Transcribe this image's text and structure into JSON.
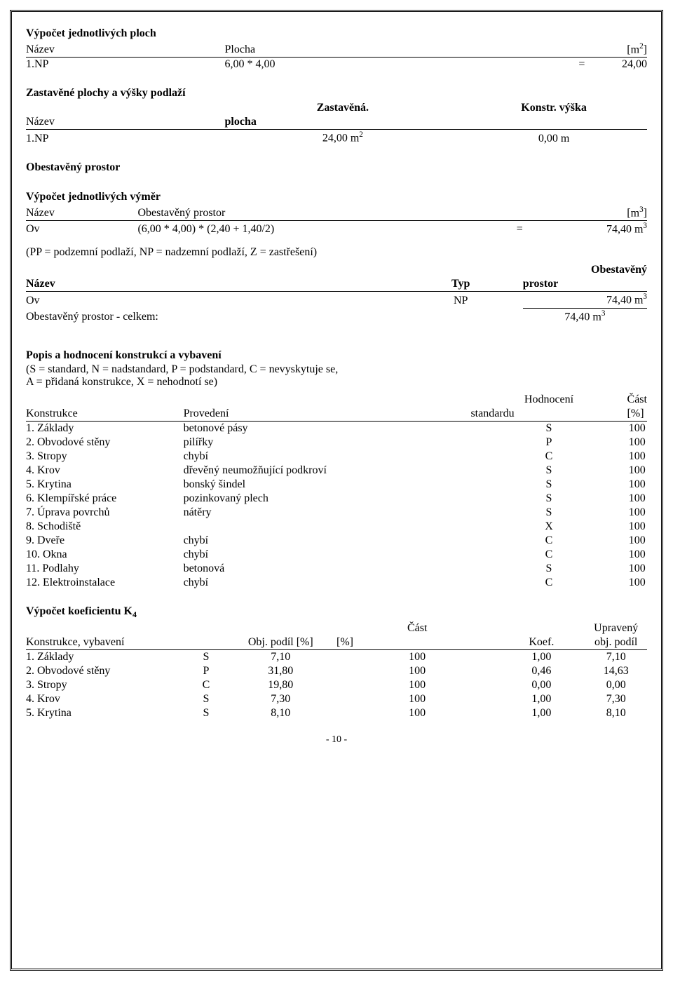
{
  "sections": {
    "ploch_title": "Výpočet jednotlivých ploch",
    "ploch_header": {
      "nazev": "Název",
      "plocha": "Plocha",
      "unit": "[m",
      "unit_sup": "2",
      "unit_close": "]"
    },
    "ploch_row": {
      "nazev": "1.NP",
      "expr": "6,00 * 4,00",
      "eq": "=",
      "val": "24,00"
    },
    "zast_title": "Zastavěné plochy a výšky podlaží",
    "zast_header": {
      "nazev": "Název",
      "col2a": "Zastavěná.",
      "col2b": "plocha",
      "col3": "Konstr. výška"
    },
    "zast_row": {
      "nazev": "1.NP",
      "plocha": "24,00 m",
      "plocha_sup": "2",
      "vyska": "0,00 m"
    },
    "obest_title": "Obestavěný prostor",
    "vymer_title": "Výpočet jednotlivých výměr",
    "vymer_header": {
      "nazev": "Název",
      "col2": "Obestavěný prostor",
      "unit": "[m",
      "unit_sup": "3",
      "unit_close": "]"
    },
    "vymer_row": {
      "nazev": "Ov",
      "expr": "(6,00 * 4,00) * (2,40 + 1,40/2)",
      "eq": "=",
      "val": "74,40 m",
      "val_sup": "3"
    },
    "pp_note": "(PP = podzemní podlaží, NP = nadzemní podlaží, Z = zastřešení)",
    "typ_header": {
      "nazev": "Název",
      "typ": "Typ",
      "col3a": "Obestavěný",
      "col3b": "prostor"
    },
    "typ_row": {
      "nazev": "Ov",
      "typ": "NP",
      "val": "74,40 m",
      "val_sup": "3"
    },
    "typ_total": {
      "label": "Obestavěný prostor - celkem:",
      "val": "74,40 m",
      "val_sup": "3"
    },
    "popis_title": "Popis a hodnocení konstrukcí a vybavení",
    "popis_note1": "(S = standard, N = nadstandard, P = podstandard, C = nevyskytuje se,",
    "popis_note2": "A = přidaná konstrukce, X = nehodnotí se)",
    "kon_header": {
      "konstrukce": "Konstrukce",
      "provedeni": "Provedení",
      "hod1": "Hodnocení",
      "hod2": "standardu",
      "cast1": "Část",
      "cast2": "[%]"
    },
    "kon_rows": [
      {
        "n": "1. Základy",
        "p": "betonové pásy",
        "h": "S",
        "c": "100"
      },
      {
        "n": "2. Obvodové stěny",
        "p": "pilířky",
        "h": "P",
        "c": "100"
      },
      {
        "n": "3. Stropy",
        "p": "chybí",
        "h": "C",
        "c": "100"
      },
      {
        "n": "4. Krov",
        "p": "dřevěný neumožňující podkroví",
        "h": "S",
        "c": "100"
      },
      {
        "n": "5. Krytina",
        "p": "bonský šindel",
        "h": "S",
        "c": "100"
      },
      {
        "n": "6. Klempířské práce",
        "p": "pozinkovaný plech",
        "h": "S",
        "c": "100"
      },
      {
        "n": "7. Úprava povrchů",
        "p": "nátěry",
        "h": "S",
        "c": "100"
      },
      {
        "n": "8. Schodiště",
        "p": "",
        "h": "X",
        "c": "100"
      },
      {
        "n": "9. Dveře",
        "p": "chybí",
        "h": "C",
        "c": "100"
      },
      {
        "n": "10. Okna",
        "p": "chybí",
        "h": "C",
        "c": "100"
      },
      {
        "n": "11. Podlahy",
        "p": "betonová",
        "h": "S",
        "c": "100"
      },
      {
        "n": "12. Elektroinstalace",
        "p": "chybí",
        "h": "C",
        "c": "100"
      }
    ],
    "k4_title": "Výpočet koeficientu K",
    "k4_title_sub": "4",
    "k4_header": {
      "kv": "Konstrukce, vybavení",
      "op": "Obj. podíl [%]",
      "cast1": "Část",
      "cast2": "[%]",
      "koef": "Koef.",
      "up1": "Upravený",
      "up2": "obj. podíl"
    },
    "k4_rows": [
      {
        "n": "1. Základy",
        "s": "S",
        "op": "7,10",
        "c": "100",
        "k": "1,00",
        "u": "7,10"
      },
      {
        "n": "2. Obvodové stěny",
        "s": "P",
        "op": "31,80",
        "c": "100",
        "k": "0,46",
        "u": "14,63"
      },
      {
        "n": "3. Stropy",
        "s": "C",
        "op": "19,80",
        "c": "100",
        "k": "0,00",
        "u": "0,00"
      },
      {
        "n": "4. Krov",
        "s": "S",
        "op": "7,30",
        "c": "100",
        "k": "1,00",
        "u": "7,30"
      },
      {
        "n": "5. Krytina",
        "s": "S",
        "op": "8,10",
        "c": "100",
        "k": "1,00",
        "u": "8,10"
      }
    ]
  },
  "page_number": "- 10 -"
}
